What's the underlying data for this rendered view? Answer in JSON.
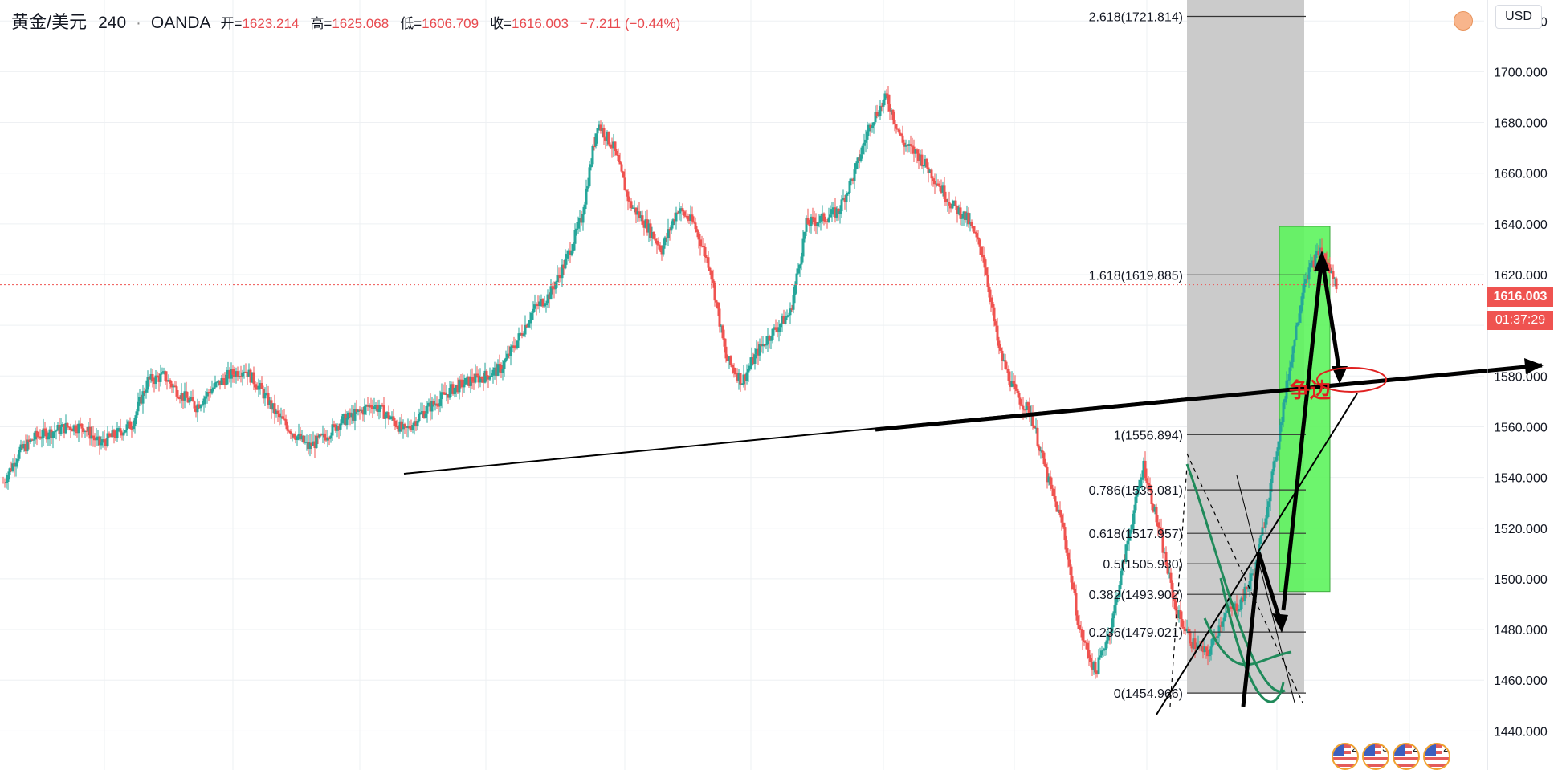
{
  "header": {
    "symbol": "黄金/美元",
    "timeframe": "240",
    "source": "OANDA",
    "open_label": "开=",
    "open": "1623.214",
    "high_label": "高=",
    "high": "1625.068",
    "low_label": "低=",
    "low": "1606.709",
    "close_label": "收=",
    "close": "1616.003",
    "change": "−7.211 (−0.44%)"
  },
  "price_scale": {
    "currency": "USD",
    "ticks": [
      "1720.000",
      "1700.000",
      "1680.000",
      "1660.000",
      "1640.000",
      "1620.000",
      "1600.000",
      "1580.000",
      "1560.000",
      "1540.000",
      "1520.000",
      "1500.000",
      "1480.000",
      "1460.000",
      "1440.000"
    ],
    "last_price_tag": "1616.003",
    "countdown_tag": "01:37:29"
  },
  "fib_levels": [
    {
      "label": "2.618(1721.814)",
      "price": 1721.814
    },
    {
      "label": "1.618(1619.885)",
      "price": 1619.885
    },
    {
      "label": "1(1556.894)",
      "price": 1556.894
    },
    {
      "label": "0.786(1535.081)",
      "price": 1535.081
    },
    {
      "label": "0.618(1517.957)",
      "price": 1517.957
    },
    {
      "label": "0.5(1505.930)",
      "price": 1505.93
    },
    {
      "label": "0.382(1493.902)",
      "price": 1493.902
    },
    {
      "label": "0.236(1479.021)",
      "price": 1479.021
    },
    {
      "label": "0(1454.966)",
      "price": 1454.966
    }
  ],
  "annotation_text": "争边",
  "events": [
    {
      "count": "2"
    },
    {
      "count": "5"
    },
    {
      "count": "2"
    },
    {
      "count": "2"
    }
  ],
  "colors": {
    "up": "#26a69a",
    "down": "#ef5350",
    "fib_zone": "#c8c8c8",
    "long_zone": "#5ef55e",
    "annotation": "#e02020"
  },
  "chart_data": {
    "type": "candlestick",
    "symbol": "黄金/美元",
    "timeframe": "240",
    "ylim": [
      1436,
      1728
    ],
    "y_ticks": [
      1440,
      1460,
      1480,
      1500,
      1520,
      1540,
      1560,
      1580,
      1600,
      1620,
      1640,
      1660,
      1680,
      1700,
      1720
    ],
    "last_price": 1616.003,
    "ohlc_last": {
      "open": 1623.214,
      "high": 1625.068,
      "low": 1606.709,
      "close": 1616.003
    },
    "close_path_approx": [
      [
        0,
        1538
      ],
      [
        10,
        1550
      ],
      [
        20,
        1556
      ],
      [
        30,
        1558
      ],
      [
        40,
        1560
      ],
      [
        50,
        1560
      ],
      [
        60,
        1553
      ],
      [
        70,
        1557
      ],
      [
        80,
        1561
      ],
      [
        90,
        1578
      ],
      [
        100,
        1580
      ],
      [
        110,
        1573
      ],
      [
        120,
        1568
      ],
      [
        130,
        1575
      ],
      [
        140,
        1580
      ],
      [
        150,
        1583
      ],
      [
        160,
        1575
      ],
      [
        170,
        1565
      ],
      [
        180,
        1558
      ],
      [
        190,
        1552
      ],
      [
        200,
        1556
      ],
      [
        210,
        1562
      ],
      [
        220,
        1565
      ],
      [
        230,
        1569
      ],
      [
        240,
        1564
      ],
      [
        250,
        1558
      ],
      [
        260,
        1565
      ],
      [
        270,
        1570
      ],
      [
        280,
        1575
      ],
      [
        290,
        1578
      ],
      [
        300,
        1580
      ],
      [
        310,
        1583
      ],
      [
        320,
        1594
      ],
      [
        330,
        1606
      ],
      [
        340,
        1612
      ],
      [
        350,
        1625
      ],
      [
        360,
        1642
      ],
      [
        370,
        1680
      ],
      [
        380,
        1670
      ],
      [
        390,
        1648
      ],
      [
        400,
        1640
      ],
      [
        410,
        1630
      ],
      [
        420,
        1646
      ],
      [
        430,
        1640
      ],
      [
        440,
        1623
      ],
      [
        450,
        1587
      ],
      [
        460,
        1578
      ],
      [
        470,
        1590
      ],
      [
        480,
        1598
      ],
      [
        490,
        1605
      ],
      [
        500,
        1640
      ],
      [
        510,
        1642
      ],
      [
        520,
        1645
      ],
      [
        530,
        1660
      ],
      [
        540,
        1680
      ],
      [
        550,
        1690
      ],
      [
        560,
        1672
      ],
      [
        570,
        1667
      ],
      [
        580,
        1658
      ],
      [
        590,
        1648
      ],
      [
        600,
        1642
      ],
      [
        610,
        1628
      ],
      [
        620,
        1590
      ],
      [
        630,
        1573
      ],
      [
        640,
        1565
      ],
      [
        650,
        1540
      ],
      [
        660,
        1520
      ],
      [
        670,
        1480
      ],
      [
        680,
        1463
      ],
      [
        690,
        1482
      ],
      [
        700,
        1515
      ],
      [
        710,
        1545
      ],
      [
        720,
        1518
      ],
      [
        730,
        1488
      ],
      [
        740,
        1475
      ],
      [
        750,
        1470
      ],
      [
        760,
        1486
      ],
      [
        770,
        1490
      ],
      [
        780,
        1505
      ],
      [
        790,
        1540
      ],
      [
        800,
        1580
      ],
      [
        810,
        1618
      ],
      [
        820,
        1630
      ],
      [
        830,
        1616
      ]
    ]
  }
}
